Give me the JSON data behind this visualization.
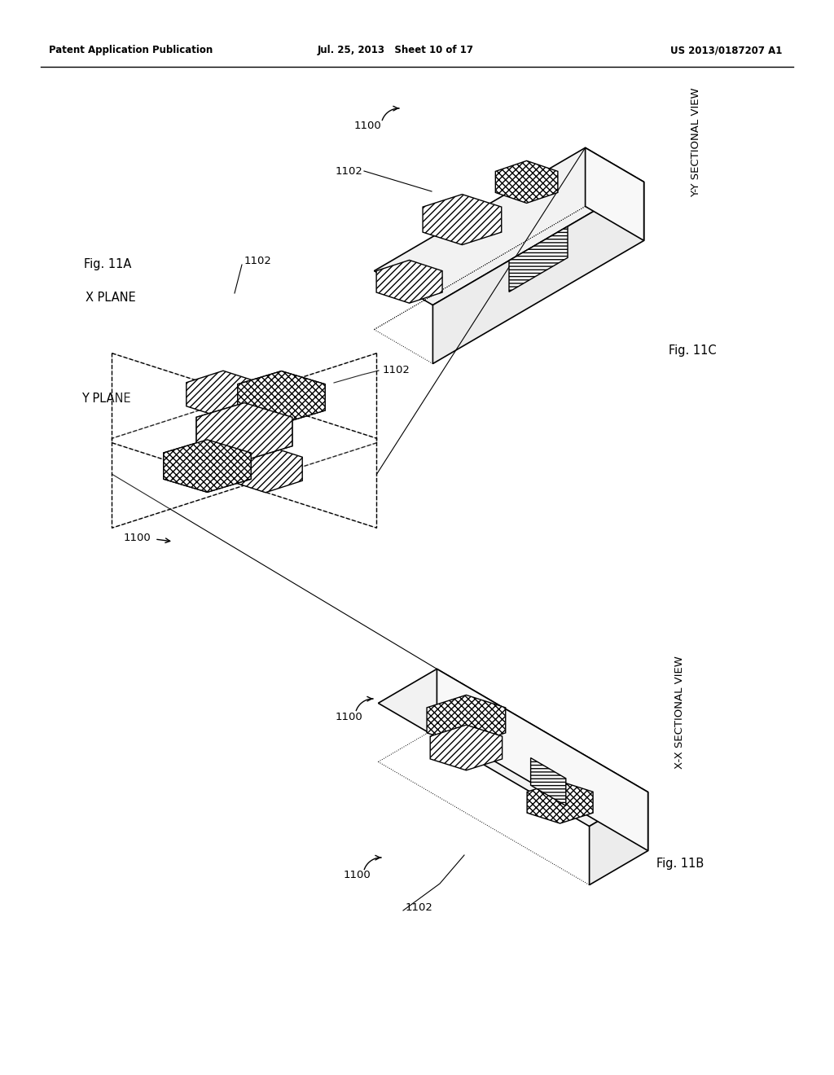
{
  "header_left": "Patent Application Publication",
  "header_center": "Jul. 25, 2013   Sheet 10 of 17",
  "header_right": "US 2013/0187207 A1",
  "fig11a_label": "Fig. 11A",
  "fig11b_label": "Fig. 11B",
  "fig11c_label": "Fig. 11C",
  "xplane_label": "X PLANE",
  "yplane_label": "Y PLANE",
  "xsect_label": "X-X SECTIONAL VIEW",
  "ysect_label": "Y-Y SECTIONAL VIEW",
  "label_1100_a": "1100",
  "label_1100_b": "1100",
  "label_1100_c": "1100",
  "label_1102_a": "1102",
  "label_1102_b": "1102",
  "label_1102_c": "1102",
  "bg_color": "#ffffff",
  "line_color": "#000000"
}
